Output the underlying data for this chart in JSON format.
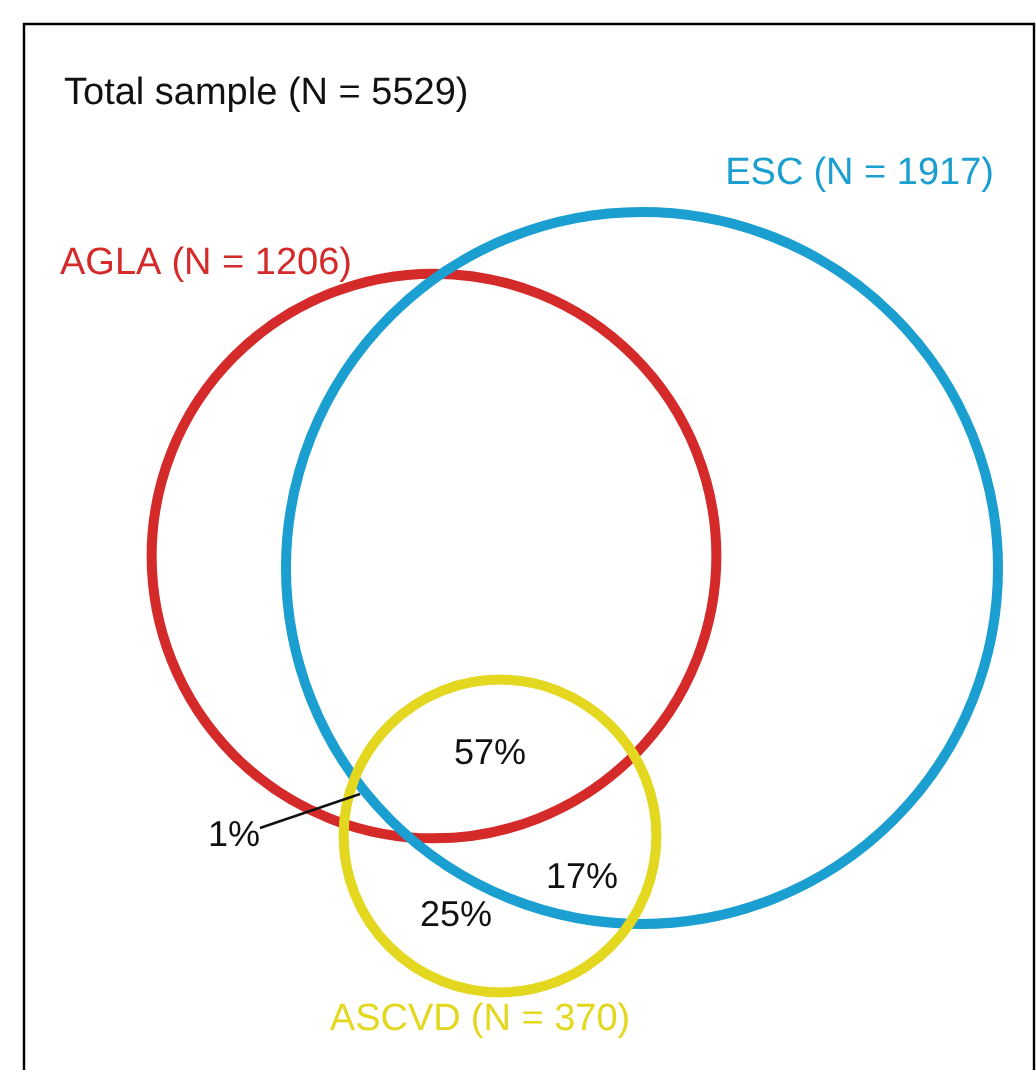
{
  "chart_data": {
    "type": "other",
    "title": "Total sample (N = 5529)",
    "categories": [
      "AGLA",
      "ESC",
      "ASCVD"
    ],
    "values": [
      1206,
      1917,
      370
    ],
    "value_labels": [
      "(N = 1206)",
      "(N = 1917)",
      "(N = 370)"
    ],
    "colors": [
      "#d42a2a",
      "#1a9fd0",
      "#e3d81f"
    ],
    "annotations": [
      "57%",
      "17%",
      "25%",
      "1%"
    ]
  }
}
